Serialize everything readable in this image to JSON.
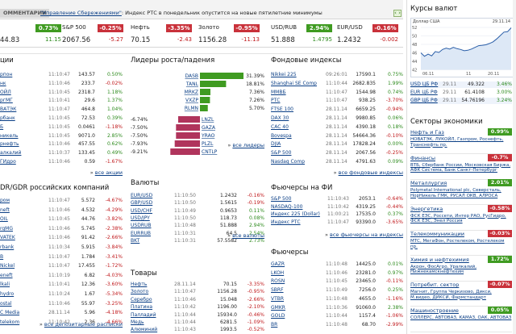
{
  "ticker": {
    "tab": "ОММЕНТАРИИ",
    "news_link": "\"Управление Сбережениями\"",
    "news_text": ": Индекс РТС в понедельник опустится на новые пятилетние минимумы",
    "arrows": "‹ ›"
  },
  "quotes": [
    {
      "name": "",
      "pct": "0.73%",
      "value": "44.83",
      "change": "11.15",
      "dir": "green"
    },
    {
      "name": "S&P 500",
      "pct": "-0.25%",
      "value": "2067.56",
      "change": "-5.27",
      "dir": "red"
    },
    {
      "name": "Нефть",
      "pct": "-3.35%",
      "value": "70.15",
      "change": "-2.43",
      "dir": "red"
    },
    {
      "name": "Золото",
      "pct": "-0.95%",
      "value": "1156.28",
      "change": "-11.13",
      "dir": "red"
    },
    {
      "name": "USD/RUB",
      "pct": "2.94%",
      "value": "51.888",
      "change": "1.4795",
      "dir": "green"
    },
    {
      "name": "EUR/USD",
      "pct": "-0.16%",
      "value": "1.2432",
      "change": "-0.002",
      "dir": "red"
    }
  ],
  "shares": {
    "title": "ции",
    "rows": [
      [
        "рпон",
        "11:10:47",
        "143.57",
        "0.50%",
        "g"
      ],
      [
        "нк",
        "11:10:46",
        "233.7",
        "-0.02%",
        "r"
      ],
      [
        "ОЙЛ",
        "11:10:45",
        "2318.7",
        "1.18%",
        "g"
      ],
      [
        "ргМГ",
        "11:10:41",
        "29.6",
        "1.37%",
        "g"
      ],
      [
        "ВАТЭК",
        "11:10:47",
        "464.8",
        "1.04%",
        "g"
      ],
      [
        "рбанк",
        "11:10:45",
        "72.53",
        "0.39%",
        "g"
      ],
      [
        "Б",
        "11:10:45",
        "0.0461",
        "-1.18%",
        "r"
      ],
      [
        "никель",
        "11:10:45",
        "9071.0",
        "2.85%",
        "g"
      ],
      [
        "рнефть",
        "11:10:46",
        "457.55",
        "0.62%",
        "g"
      ],
      [
        "алкалий",
        "11:10:37",
        "133.45",
        "0.49%",
        "g"
      ],
      [
        "ГИдро",
        "11:10:46",
        "0.59",
        "-1.67%",
        "r"
      ]
    ],
    "more": "все акции"
  },
  "leaders": {
    "title": "Лидеры роста/падения",
    "up": [
      [
        "DASB",
        "31.39%",
        1.0
      ],
      [
        "TANL",
        "18.81%",
        0.6
      ],
      [
        "MRKZ",
        "7.36%",
        0.24
      ],
      [
        "VXZP",
        "7.26%",
        0.23
      ],
      [
        "RLMN",
        "5.70%",
        0.18
      ]
    ],
    "down": [
      [
        "-6.74%",
        "LNZL",
        0.5
      ],
      [
        "-7.50%",
        "GAZA",
        0.55
      ],
      [
        "-7.50%",
        "YRAO",
        0.55
      ],
      [
        "-7.93%",
        "PLZL",
        0.58
      ],
      [
        "-9.21%",
        "CNTLP",
        0.68
      ]
    ],
    "more": "все лидеры"
  },
  "fund": {
    "title": "Фондовые индексы",
    "rows": [
      [
        "Nikkei 225",
        "09:26:01",
        "17590.1",
        "0.75%",
        "g"
      ],
      [
        "Shanghai SE Comp",
        "11:10:44",
        "2682.835",
        "1.99%",
        "g"
      ],
      [
        "ММВБ",
        "11:10:47",
        "1544.98",
        "0.74%",
        "g"
      ],
      [
        "РТС",
        "11:10:47",
        "938.25",
        "-3.70%",
        "r"
      ],
      [
        "FTSE 100",
        "28.11.14",
        "6659.25",
        "-0.94%",
        "r"
      ],
      [
        "DAX 30",
        "28.11.14",
        "9980.85",
        "0.06%",
        "g"
      ],
      [
        "CAC 40",
        "28.11.14",
        "4390.18",
        "0.18%",
        "g"
      ],
      [
        "Bovespa",
        "28.11.14",
        "54664.36",
        "-0.10%",
        "r"
      ],
      [
        "DJIA",
        "28.11.14",
        "17828.24",
        "0.00%",
        "g"
      ],
      [
        "S&P 500",
        "28.11.14",
        "2067.56",
        "-0.25%",
        "r"
      ],
      [
        "Nasdaq Comp",
        "28.11.14",
        "4791.63",
        "0.09%",
        "g"
      ]
    ],
    "more": "все фондовые индексы"
  },
  "gdr": {
    "title": "DR/GDR российских компаний",
    "rows": [
      [
        "ром",
        "11:10:47",
        "5.572",
        "-4.67%",
        "r"
      ],
      [
        "neft",
        "11:10:46",
        "4.532",
        "-4.29%",
        "r"
      ],
      [
        "OIL",
        "11:10:45",
        "44.76",
        "-3.82%",
        "r"
      ],
      [
        "rgMG",
        "11:10:46",
        "5.745",
        "-2.38%",
        "r"
      ],
      [
        "VATEK",
        "11:10:46",
        "91.42",
        "-2.66%",
        "r"
      ],
      [
        "rbank",
        "11:10:34",
        "5.915",
        "-3.84%",
        "r"
      ],
      [
        "B",
        "11:10:47",
        "1.784",
        "-3.41%",
        "r"
      ],
      [
        "Nickel",
        "11:10:47",
        "17.455",
        "-1.72%",
        "r"
      ],
      [
        "eneft",
        "11:10:19",
        "6.82",
        "-4.03%",
        "r"
      ],
      [
        "lkali",
        "11:10:41",
        "12.36",
        "-3.60%",
        "r"
      ],
      [
        "hydro",
        "11:10:24",
        "1.67",
        "-5.34%",
        "r"
      ],
      [
        "ostal",
        "11:10:46",
        "55.97",
        "-3.25%",
        "r"
      ],
      [
        "C Media",
        "28.11.14",
        "5.96",
        "-4.18%",
        "r"
      ],
      [
        "telekom",
        "11:10:42",
        "2.36",
        "-4.66%",
        "r"
      ]
    ],
    "more": "все депозитарные расписки"
  },
  "fx": {
    "title": "Валюты",
    "rows": [
      [
        "EUR/USD",
        "11:10:50",
        "1.2432",
        "-0.16%",
        "r"
      ],
      [
        "GBP/USD",
        "11:10:50",
        "1.5615",
        "-0.19%",
        "r"
      ],
      [
        "USD/CHF",
        "11:10:49",
        "0.9653",
        "0.11%",
        "g"
      ],
      [
        "USD/JPY",
        "11:10:50",
        "118.73",
        "0.08%",
        "g"
      ],
      [
        "USDRUB",
        "11:10:48",
        "51.888",
        "2.94%",
        "g"
      ],
      [
        "EURRUB",
        "11:10:31",
        "64.5",
        "2.54%",
        "g"
      ],
      [
        "BKT",
        "11:10:31",
        "57.5582",
        "2.73%",
        "g"
      ]
    ],
    "more": "все валюты"
  },
  "futidx": {
    "title": "Фьючерсы на ФИ",
    "rows": [
      [
        "S&P 500",
        "11:10:43",
        "2053.1",
        "-0.64%",
        "r"
      ],
      [
        "NASDAQ-100",
        "11:10:42",
        "4319.25",
        "-0.44%",
        "r"
      ],
      [
        "Индекс 225 (Dollar)",
        "11:00:21",
        "17535.0",
        "0.37%",
        "g"
      ],
      [
        "Индекс РТС",
        "11:10:47",
        "93390.0",
        "-3.65%",
        "r"
      ]
    ],
    "more": "все фьючерсы на индексы"
  },
  "goods": {
    "title": "Товары",
    "rows": [
      [
        "Нефть",
        "28.11.14",
        "70.15",
        "-3.35%",
        "r"
      ],
      [
        "Золото",
        "11:10:47",
        "1156.28",
        "-0.95%",
        "r"
      ],
      [
        "Серебро",
        "11:10:46",
        "15.048",
        "-2.66%",
        "r"
      ],
      [
        "Платина",
        "11:10:42",
        "1196.00",
        "-2.10%",
        "r"
      ],
      [
        "Палладий",
        "11:10:44",
        "15934.0",
        "-0.46%",
        "r"
      ],
      [
        "Медь",
        "11:10:44",
        "6281.5",
        "-1.09%",
        "r"
      ],
      [
        "Алюминий",
        "11:10:43",
        "1993.5",
        "-0.52%",
        "r"
      ]
    ]
  },
  "futures": {
    "title": "Фьючерсы",
    "rows": [
      [
        "GAZR",
        "11:10:48",
        "14425.0",
        "0.01%",
        "g"
      ],
      [
        "LKOH",
        "11:10:46",
        "23281.0",
        "0.97%",
        "g"
      ],
      [
        "ROSN",
        "11:10:45",
        "23465.0",
        "-0.11%",
        "r"
      ],
      [
        "SBRF",
        "11:10:49",
        "7256.0",
        "0.25%",
        "g"
      ],
      [
        "VTBR",
        "11:10:48",
        "4655.0",
        "-1.16%",
        "r"
      ],
      [
        "GMKR",
        "11:10:36",
        "91060.0",
        "2.38%",
        "g"
      ],
      [
        "GOLD",
        "11:10:44",
        "1157.4",
        "-1.06%",
        "r"
      ],
      [
        "BR",
        "11:10:48",
        "68.70",
        "-2.99%",
        "r"
      ]
    ]
  },
  "side": {
    "rates_title": "Курсы валют",
    "chart_caption": "Доллар США",
    "chart_date": "29.11.14",
    "chart_y": [
      "52",
      "50",
      "48",
      "46",
      "44",
      "42"
    ],
    "chart_x": [
      "06.11",
      "",
      "11",
      "20.11",
      ""
    ],
    "rates": [
      [
        "USD ЦБ РФ",
        "29.11",
        "49.322",
        "3.46%",
        "g"
      ],
      [
        "EUR ЦБ РФ",
        "29.11",
        "61.4108",
        "3.00%",
        "g"
      ],
      [
        "GBP ЦБ РФ",
        "29.11",
        "54.76196",
        "3.24%",
        "g"
      ]
    ],
    "sectors_title": "Секторы экономики",
    "sectors": [
      {
        "name": "Нефть и Газ",
        "pct": "0.99%",
        "dir": "g",
        "desc": "НОВАТЭК, ЛУКОЙЛ, Газпром, Роснефть, Транснефть пр."
      },
      {
        "name": "Финансы",
        "pct": "-0.7%",
        "dir": "r",
        "desc": "ВТБ, Сбербанк России, Московская Биржа, АФК Система, Банк Санкт-Петербург"
      },
      {
        "name": "Металлургия",
        "pct": "2.01%",
        "dir": "g",
        "desc": "Polymetal International plc, Северсталь, НорНикель ГМК, РУСАЛ ОКВ, АЛРОСА"
      },
      {
        "name": "Энергетика",
        "pct": "-0.58%",
        "dir": "r",
        "desc": "ФСК ЕЭС, Россети, Интер РАО, РусГидро, ФСК ЕЭС, Энел Россия"
      },
      {
        "name": "Телекоммуникации",
        "pct": "-0.03%",
        "dir": "r",
        "desc": "МТС, МегаФон, Ростелеком, Ростелеком пр."
      },
      {
        "name": "Химия и нефтехимия",
        "pct": "1.72%",
        "dir": "g",
        "desc": "Акрон, ФосАгро, Уралкалий, Нижнекамскнефтехим"
      },
      {
        "name": "Потребит. сектор",
        "pct": "-0.07%",
        "dir": "r",
        "desc": "Магнит, Группа Черкизово, Дикси, М.видео, ДИКСИ, Фармстандарт"
      },
      {
        "name": "Машиностроение",
        "pct": "0.05%",
        "dir": "g",
        "desc": "СОЛЛЕРС, АВТОВАЗ, КАМАЗ, ОАК, АВТОВАЗ"
      }
    ]
  },
  "colors": {
    "green": "#3f9b21",
    "red": "#c9313a",
    "link": "#0b3f86"
  }
}
